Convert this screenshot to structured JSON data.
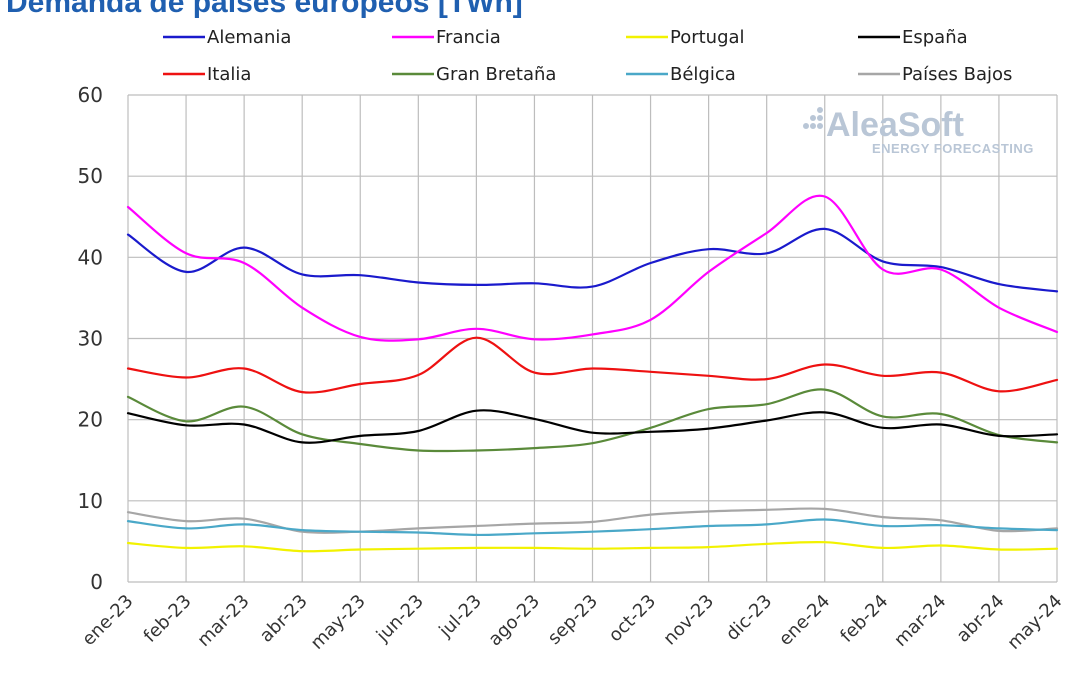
{
  "chart_data": {
    "type": "line",
    "title": "Demanda de países europeos [TWh]",
    "xlabel": "",
    "ylabel": "",
    "ylim": [
      0,
      60
    ],
    "yticks": [
      0,
      10,
      20,
      30,
      40,
      50,
      60
    ],
    "grid": true,
    "legend_position": "top",
    "categories": [
      "ene-23",
      "feb-23",
      "mar-23",
      "abr-23",
      "may-23",
      "jun-23",
      "jul-23",
      "ago-23",
      "sep-23",
      "oct-23",
      "nov-23",
      "dic-23",
      "ene-24",
      "feb-24",
      "mar-24",
      "abr-24",
      "may-24"
    ],
    "series": [
      {
        "name": "Alemania",
        "color": "#1a1acc",
        "values": [
          42.8,
          38.2,
          41.2,
          37.9,
          37.8,
          36.9,
          36.6,
          36.8,
          36.4,
          39.3,
          41.0,
          40.5,
          43.5,
          39.5,
          38.8,
          36.7,
          35.8
        ]
      },
      {
        "name": "Francia",
        "color": "#ff00ff",
        "values": [
          46.2,
          40.5,
          39.3,
          33.8,
          30.2,
          29.9,
          31.2,
          29.9,
          30.5,
          32.3,
          38.2,
          43.0,
          47.5,
          38.5,
          38.5,
          33.8,
          30.8
        ]
      },
      {
        "name": "Portugal",
        "color": "#f2f200",
        "values": [
          4.8,
          4.2,
          4.4,
          3.8,
          4.0,
          4.1,
          4.2,
          4.2,
          4.1,
          4.2,
          4.3,
          4.7,
          4.9,
          4.2,
          4.5,
          4.0,
          4.1
        ]
      },
      {
        "name": "España",
        "color": "#000000",
        "values": [
          20.8,
          19.3,
          19.4,
          17.2,
          18.0,
          18.6,
          21.1,
          20.1,
          18.4,
          18.5,
          18.9,
          19.9,
          20.9,
          19.0,
          19.4,
          18.0,
          18.2
        ]
      },
      {
        "name": "Italia",
        "color": "#ee1111",
        "values": [
          26.3,
          25.2,
          26.3,
          23.4,
          24.4,
          25.5,
          30.1,
          25.8,
          26.3,
          25.9,
          25.4,
          25.0,
          26.8,
          25.4,
          25.8,
          23.5,
          24.9
        ]
      },
      {
        "name": "Gran Bretaña",
        "color": "#5a8a3a",
        "values": [
          22.8,
          19.8,
          21.6,
          18.2,
          17.0,
          16.2,
          16.2,
          16.5,
          17.1,
          19.0,
          21.3,
          21.9,
          23.7,
          20.4,
          20.7,
          18.1,
          17.2
        ]
      },
      {
        "name": "Bélgica",
        "color": "#4aa8c8",
        "values": [
          7.5,
          6.6,
          7.1,
          6.4,
          6.2,
          6.1,
          5.8,
          6.0,
          6.2,
          6.5,
          6.9,
          7.1,
          7.7,
          6.9,
          7.0,
          6.6,
          6.4
        ]
      },
      {
        "name": "Países Bajos",
        "color": "#a6a6a6",
        "values": [
          8.6,
          7.5,
          7.8,
          6.2,
          6.2,
          6.6,
          6.9,
          7.2,
          7.4,
          8.3,
          8.7,
          8.9,
          9.0,
          8.0,
          7.6,
          6.3,
          6.6
        ]
      }
    ]
  },
  "watermark": {
    "brand": "AleaSoft",
    "tagline": "ENERGY FORECASTING"
  }
}
